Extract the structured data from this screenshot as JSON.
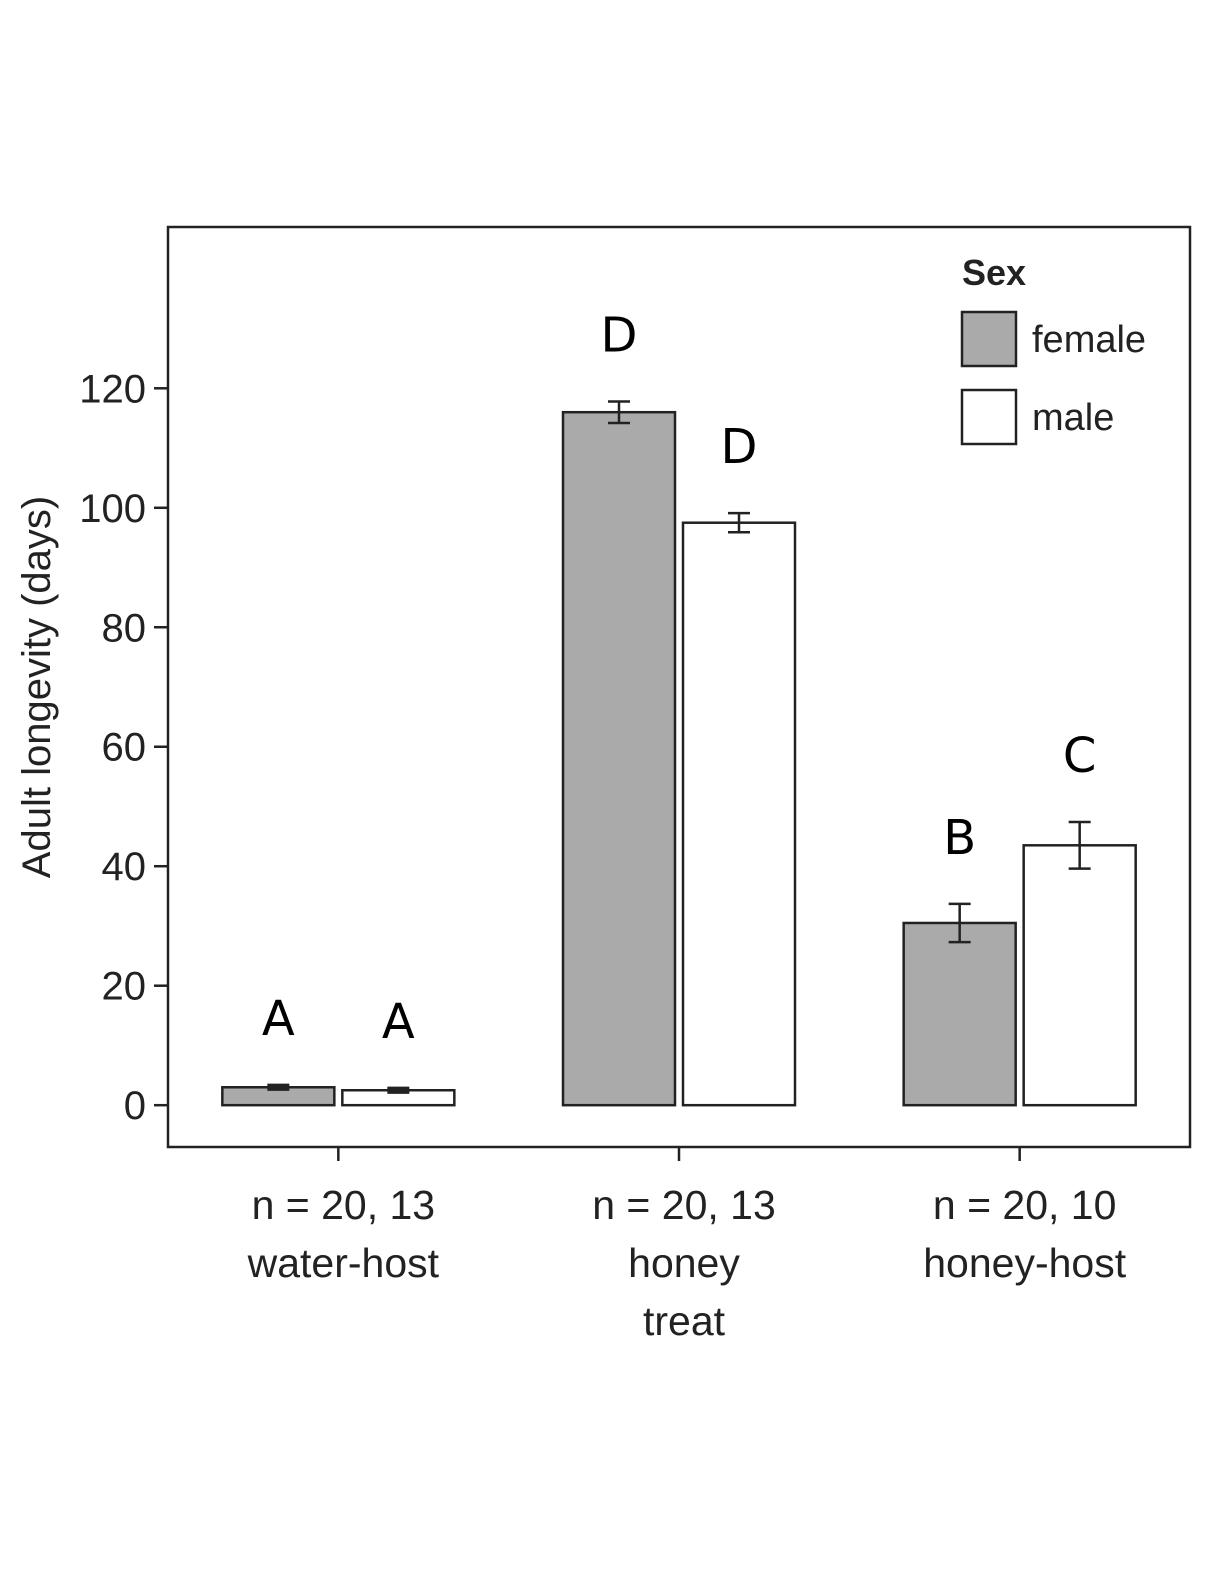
{
  "chart_data": {
    "type": "bar",
    "title": "",
    "xlabel": "",
    "ylabel": "Adult longevity (days)",
    "ylim": [
      -7,
      147
    ],
    "yticks": [
      0,
      20,
      40,
      60,
      80,
      100,
      120
    ],
    "grid": false,
    "legend": {
      "title": "Sex",
      "placement": "top-right",
      "entries": [
        "female",
        "male"
      ]
    },
    "categories": [
      {
        "lines": [
          "n = 20, 13",
          "water-host"
        ]
      },
      {
        "lines": [
          "n = 20, 13",
          "honey",
          "treat"
        ]
      },
      {
        "lines": [
          "n = 20, 10",
          "honey-host"
        ]
      }
    ],
    "series": [
      {
        "name": "female",
        "color": "#aaaaaa",
        "values": [
          3,
          116,
          30.5
        ],
        "errors": [
          0.4,
          1.8,
          3.2
        ],
        "letters": [
          "A",
          "D",
          "B"
        ]
      },
      {
        "name": "male",
        "color": "#ffffff",
        "values": [
          2.5,
          97.5,
          43.5
        ],
        "errors": [
          0.4,
          1.6,
          3.9
        ],
        "letters": [
          "A",
          "D",
          "C"
        ]
      }
    ]
  }
}
